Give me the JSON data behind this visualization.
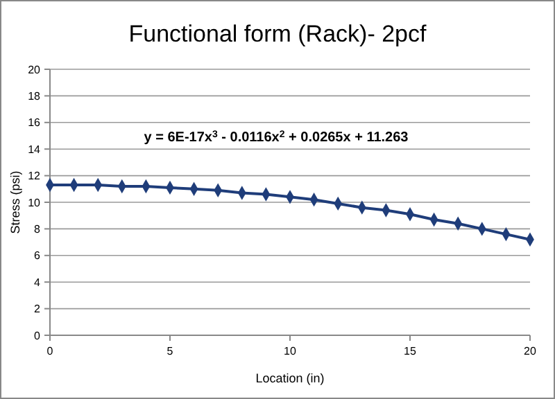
{
  "chart_data": {
    "type": "line",
    "title": "Functional form (Rack)- 2pcf",
    "xlabel": "Location (in)",
    "ylabel": "Stress (psi)",
    "annotations": [
      "y = 6E-17x$^{3}$ - 0.0116x$^{2}$ + 0.0265x + 11.263"
    ],
    "x": [
      0,
      1,
      2,
      3,
      4,
      5,
      6,
      7,
      8,
      9,
      10,
      11,
      12,
      13,
      14,
      15,
      16,
      17,
      18,
      19,
      20
    ],
    "series": [
      {
        "color": "#1f3d7a",
        "values": [
          11.3,
          11.3,
          11.3,
          11.2,
          11.2,
          11.1,
          11.0,
          10.9,
          10.7,
          10.6,
          10.4,
          10.2,
          9.9,
          9.6,
          9.4,
          9.1,
          8.7,
          8.4,
          8.0,
          7.6,
          7.2
        ]
      }
    ],
    "xlim": [
      0,
      20
    ],
    "xticks": [
      0,
      5,
      10,
      15,
      20
    ],
    "ylim": [
      0,
      20
    ],
    "yticks": [
      0,
      2,
      4,
      6,
      8,
      10,
      12,
      14,
      16,
      18,
      20
    ],
    "grid": "y",
    "marker": "diamond",
    "line_style": "solid"
  }
}
